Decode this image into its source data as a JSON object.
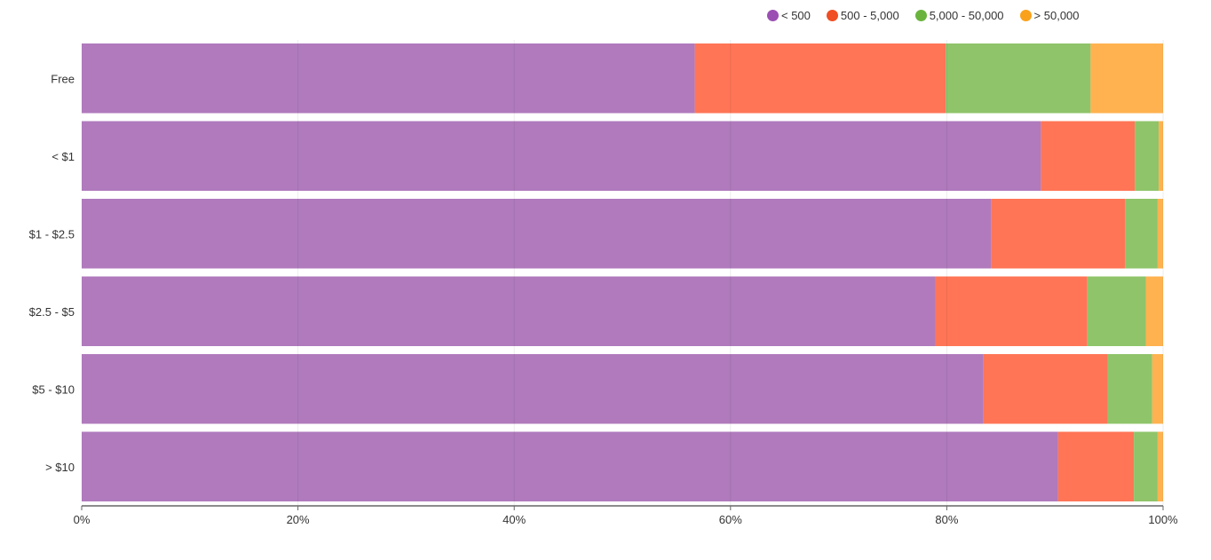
{
  "chart_data": {
    "type": "bar",
    "orientation": "horizontal",
    "stacked": "percent",
    "categories": [
      "Free",
      "< $1",
      "$1 - $2.5",
      "$2.5 - $5",
      "$5 - $10",
      "> $10"
    ],
    "series": [
      {
        "name": "< 500",
        "color": "#b07abd",
        "legend_color": "#9b4fb3",
        "values": [
          56.7,
          88.7,
          84.1,
          78.9,
          83.4,
          90.3
        ]
      },
      {
        "name": "500 - 5,000",
        "color": "#ff7556",
        "legend_color": "#f04e24",
        "values": [
          23.2,
          8.7,
          12.4,
          14.1,
          11.5,
          7.0
        ]
      },
      {
        "name": "5,000 - 50,000",
        "color": "#8fc46a",
        "legend_color": "#6ab43e",
        "values": [
          13.4,
          2.2,
          3.0,
          5.4,
          4.1,
          2.2
        ]
      },
      {
        "name": "> 50,000",
        "color": "#ffb24f",
        "legend_color": "#f9a11b",
        "values": [
          6.7,
          0.4,
          0.5,
          1.6,
          1.0,
          0.5
        ]
      }
    ],
    "x_ticks": [
      "0%",
      "20%",
      "40%",
      "60%",
      "80%",
      "100%"
    ],
    "xlim": [
      0,
      100
    ],
    "grid": true,
    "legend_position": "top-right"
  }
}
